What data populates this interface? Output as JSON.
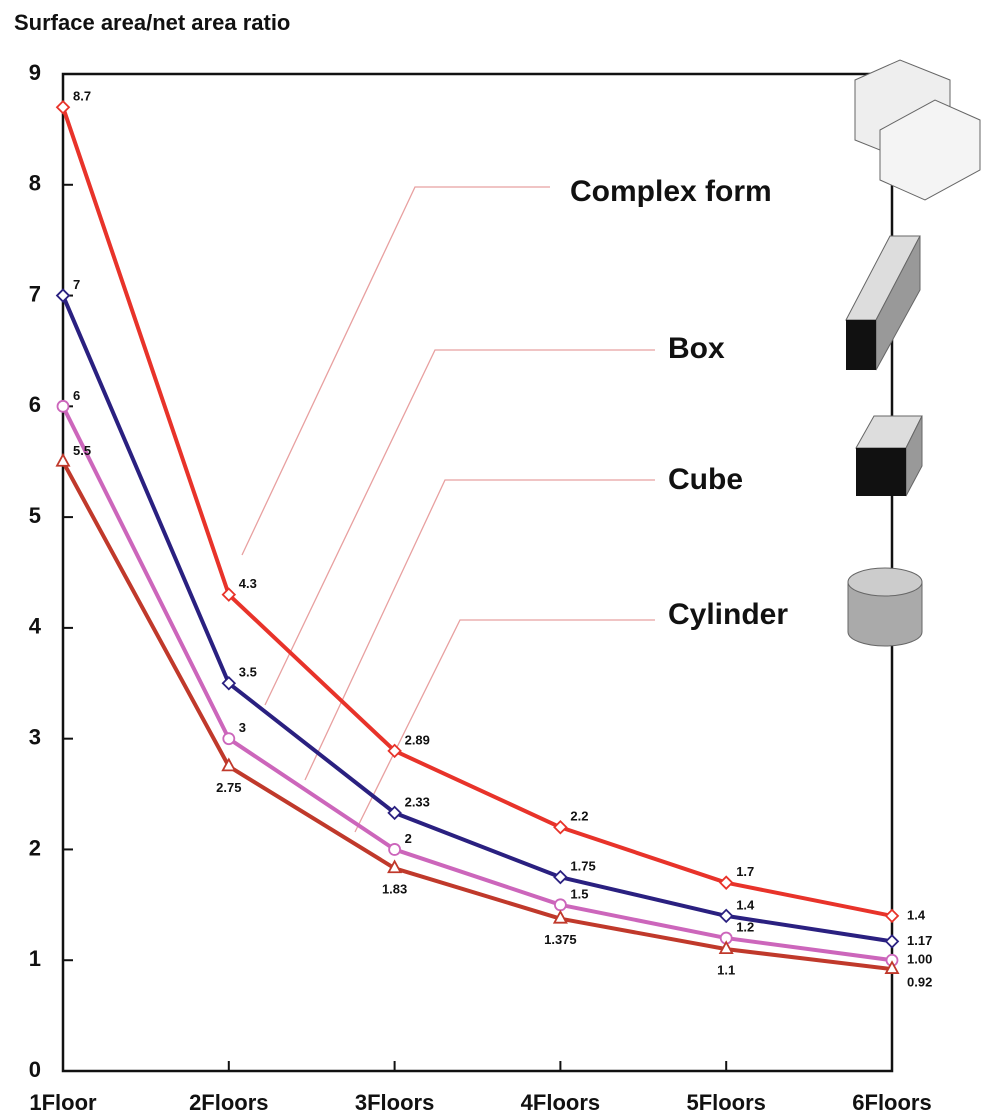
{
  "chart_data": {
    "type": "line",
    "title": "Surface area/net area ratio",
    "categories": [
      "1Floor",
      "2Floors",
      "3Floors",
      "4Floors",
      "5Floors",
      "6Floors"
    ],
    "ylim": [
      0,
      9
    ],
    "yticks": [
      0,
      1,
      2,
      3,
      4,
      5,
      6,
      7,
      8,
      9
    ],
    "series": [
      {
        "name": "Complex form",
        "color": "#e8332a",
        "marker": "diamond",
        "values": [
          8.7,
          4.3,
          2.89,
          2.2,
          1.7,
          1.4
        ]
      },
      {
        "name": "Box",
        "color": "#2a2080",
        "marker": "diamond",
        "values": [
          7,
          3.5,
          2.33,
          1.75,
          1.4,
          1.17
        ]
      },
      {
        "name": "Cube",
        "color": "#cc66bb",
        "marker": "circle",
        "values": [
          6,
          3,
          2,
          1.5,
          1.2,
          1
        ],
        "value_labels": [
          "6",
          "3",
          "2",
          "1.5",
          "1.2",
          "1.00"
        ]
      },
      {
        "name": "Cylinder",
        "color": "#c0392b",
        "marker": "triangle",
        "values": [
          5.5,
          2.75,
          1.83,
          1.375,
          1.1,
          0.92
        ]
      }
    ]
  }
}
